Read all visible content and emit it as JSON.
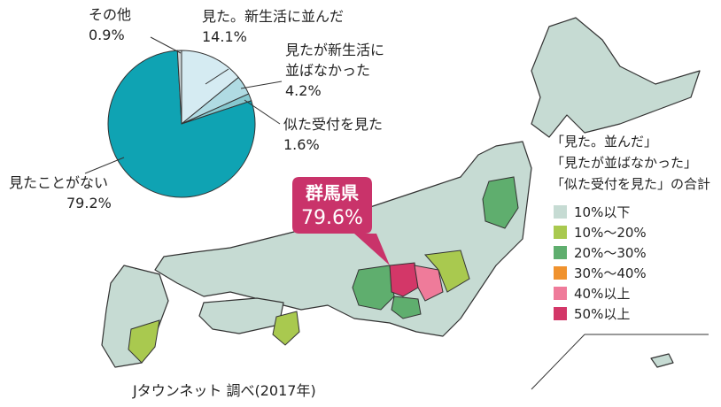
{
  "chart_data": {
    "type": "pie",
    "categories": [
      "見た。新生活に並んだ",
      "見たが新生活に\n並ばなかった",
      "似た受付を見た",
      "見たことがない",
      "その他"
    ],
    "values": [
      14.1,
      4.2,
      1.6,
      79.2,
      0.9
    ],
    "value_labels": [
      "14.1%",
      "4.2%",
      "1.6%",
      "79.2%",
      "0.9%"
    ],
    "colors": [
      "#d5ebf2",
      "#b0dbe3",
      "#86c8cf",
      "#0fa3b3",
      "#cdd6d8"
    ]
  },
  "map": {
    "legend_title": [
      "「見た。並んだ」",
      "「見たが並ばなかった」",
      "「似た受付を見た」の合計"
    ],
    "legend": [
      {
        "label": "10%以下",
        "color": "#c6dbd3"
      },
      {
        "label": "10%～20%",
        "color": "#a9c94f"
      },
      {
        "label": "20%～30%",
        "color": "#5fae6e"
      },
      {
        "label": "30%～40%",
        "color": "#f0922e"
      },
      {
        "label": "40%以上",
        "color": "#ef7b9a"
      },
      {
        "label": "50%以上",
        "color": "#d33768"
      }
    ],
    "callout": {
      "name": "群馬県",
      "value": "79.6%"
    },
    "source": "Jタウンネット 調べ(2017年)"
  }
}
